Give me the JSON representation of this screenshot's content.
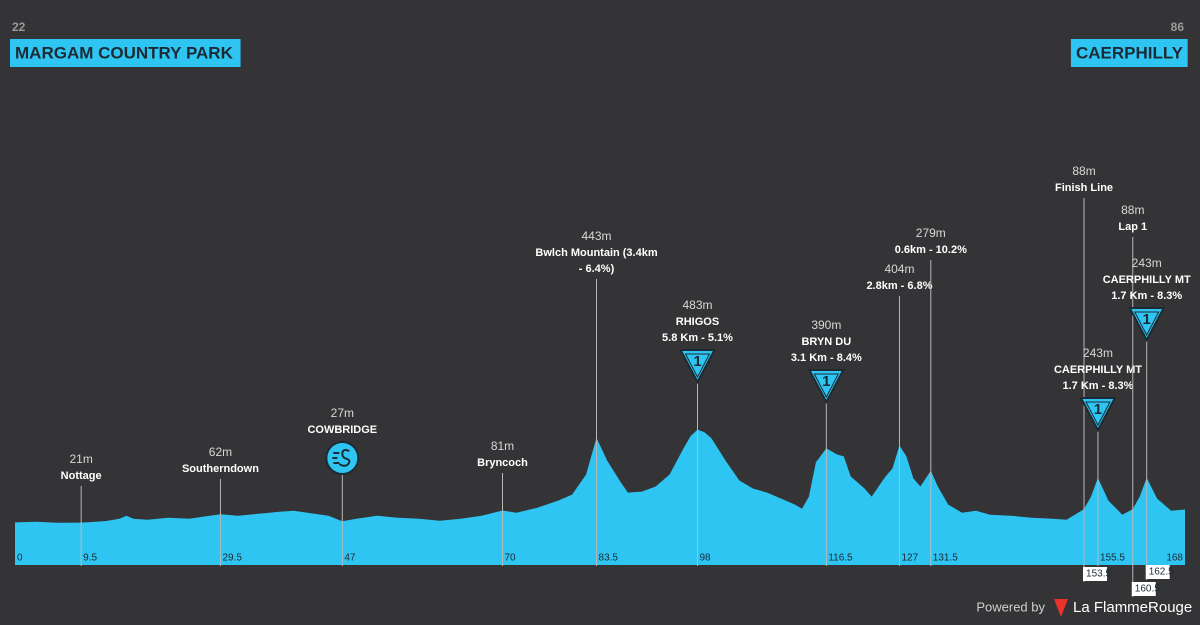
{
  "chart_data": {
    "type": "area",
    "start": {
      "elevation": 22,
      "name": "MARGAM COUNTRY PARK"
    },
    "finish": {
      "elevation": 86,
      "name": "CAERPHILLY"
    },
    "color": "#2ec5f3",
    "xlim": [
      0,
      168
    ],
    "ylim": [
      -190,
      2370
    ],
    "profile": {
      "x": [
        0,
        3,
        6,
        9.5,
        13,
        15,
        16,
        17,
        19,
        22,
        25,
        27,
        29.5,
        32,
        35,
        38,
        40,
        42,
        45,
        47,
        49,
        52,
        55,
        58,
        61,
        64,
        67,
        70,
        72,
        75,
        78,
        80,
        82,
        83.5,
        85,
        87,
        88,
        90,
        92,
        94,
        96,
        97,
        98,
        99,
        100,
        102,
        104,
        106,
        108,
        110,
        112,
        113,
        114,
        115,
        116.5,
        118,
        119,
        120,
        121,
        122,
        123,
        124,
        125,
        126,
        127,
        128,
        129,
        130,
        131.5,
        132.5,
        134,
        136,
        138,
        140,
        143,
        146,
        149,
        151,
        153.5,
        154.5,
        155.5,
        157,
        159,
        160.5,
        161.5,
        162.5,
        164,
        166,
        168
      ],
      "values": [
        22,
        25,
        20,
        21,
        28,
        40,
        55,
        40,
        35,
        45,
        40,
        50,
        62,
        55,
        65,
        75,
        80,
        70,
        55,
        27,
        40,
        55,
        45,
        40,
        30,
        40,
        55,
        81,
        70,
        95,
        130,
        160,
        260,
        443,
        330,
        220,
        170,
        175,
        200,
        260,
        390,
        450,
        483,
        470,
        440,
        330,
        230,
        190,
        170,
        140,
        110,
        90,
        150,
        320,
        390,
        360,
        350,
        250,
        220,
        190,
        150,
        200,
        250,
        290,
        404,
        350,
        240,
        200,
        279,
        200,
        110,
        70,
        80,
        60,
        55,
        45,
        40,
        35,
        88,
        150,
        243,
        130,
        60,
        88,
        150,
        243,
        140,
        80,
        86
      ]
    },
    "waypoints": [
      {
        "km": 9.5,
        "elevation": 21,
        "elevation_label": "21m",
        "lines": [
          "Nottage"
        ]
      },
      {
        "km": 29.5,
        "elevation": 62,
        "elevation_label": "62m",
        "lines": [
          "Southerndown"
        ]
      },
      {
        "km": 47,
        "elevation": 27,
        "elevation_label": "27m",
        "lines": [
          "COWBRIDGE"
        ],
        "icon": "sprint"
      },
      {
        "km": 70,
        "elevation": 81,
        "elevation_label": "81m",
        "lines": [
          "Bryncoch"
        ]
      },
      {
        "km": 83.5,
        "elevation": 443,
        "elevation_label": "443m",
        "lines": [
          "Bwlch Mountain (3.4km",
          "- 6.4%)"
        ]
      },
      {
        "km": 98,
        "elevation": 483,
        "elevation_label": "483m",
        "lines": [
          "RHIGOS",
          "5.8 Km - 5.1%"
        ],
        "icon": "climb",
        "category": 1
      },
      {
        "km": 116.5,
        "elevation": 390,
        "elevation_label": "390m",
        "lines": [
          "BRYN DU",
          "3.1 Km - 8.4%"
        ],
        "icon": "climb",
        "category": 1
      },
      {
        "km": 127,
        "elevation": 404,
        "elevation_label": "404m",
        "lines": [
          "2.8km - 6.8%"
        ]
      },
      {
        "km": 131.5,
        "elevation": 279,
        "elevation_label": "279m",
        "lines": [
          "0.6km - 10.2%"
        ]
      },
      {
        "km": 153.5,
        "elevation": 88,
        "elevation_label": "88m",
        "lines": [
          "Finish Line"
        ]
      },
      {
        "km": 155.5,
        "elevation": 243,
        "elevation_label": "243m",
        "lines": [
          "CAERPHILLY MT",
          "1.7 Km - 8.3%"
        ],
        "icon": "climb",
        "category": 1
      },
      {
        "km": 160.5,
        "elevation": 88,
        "elevation_label": "88m",
        "lines": [
          "Lap 1"
        ]
      },
      {
        "km": 162.5,
        "elevation": 243,
        "elevation_label": "243m",
        "lines": [
          "CAERPHILLY MT",
          "1.7 Km - 8.3%"
        ],
        "icon": "climb",
        "category": 1
      }
    ],
    "credit": "Powered by",
    "brand": "La FlammeRouge"
  }
}
